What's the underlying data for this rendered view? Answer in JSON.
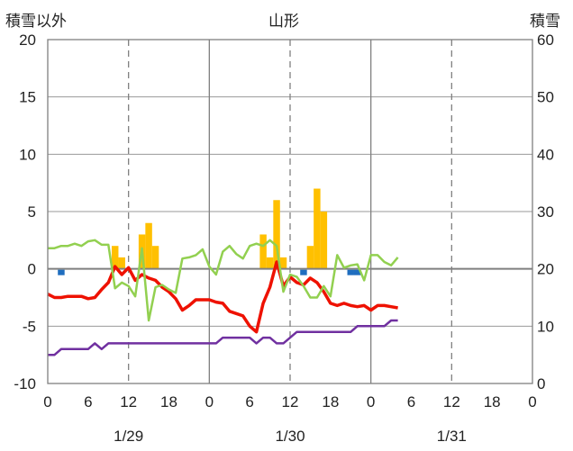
{
  "chart_data": {
    "type": "line",
    "title": "山形",
    "ylabel_left": "積雪以外",
    "ylabel_right": "積雪",
    "ylim_left": [
      -10,
      20
    ],
    "yticks_left": [
      20,
      15,
      10,
      5,
      0,
      -5,
      -10
    ],
    "ylim_right": [
      0,
      60
    ],
    "yticks_right": [
      60,
      50,
      40,
      30,
      20,
      10,
      0
    ],
    "x_hours_total": 72,
    "xticks": [
      {
        "h": 0,
        "label": "0"
      },
      {
        "h": 6,
        "label": "6"
      },
      {
        "h": 12,
        "label": "12"
      },
      {
        "h": 18,
        "label": "18"
      },
      {
        "h": 24,
        "label": "0"
      },
      {
        "h": 30,
        "label": "6"
      },
      {
        "h": 36,
        "label": "12"
      },
      {
        "h": 42,
        "label": "18"
      },
      {
        "h": 48,
        "label": "0"
      },
      {
        "h": 54,
        "label": "6"
      },
      {
        "h": 60,
        "label": "12"
      },
      {
        "h": 66,
        "label": "18"
      },
      {
        "h": 72,
        "label": "0"
      }
    ],
    "dates": [
      {
        "h": 12,
        "label": "1/29"
      },
      {
        "h": 36,
        "label": "1/30"
      },
      {
        "h": 60,
        "label": "1/31"
      }
    ],
    "precip_bars": [
      {
        "h": 10,
        "v": 2
      },
      {
        "h": 11,
        "v": 1
      },
      {
        "h": 14,
        "v": 3
      },
      {
        "h": 15,
        "v": 4
      },
      {
        "h": 16,
        "v": 2
      },
      {
        "h": 32,
        "v": 3
      },
      {
        "h": 33,
        "v": 1
      },
      {
        "h": 34,
        "v": 6
      },
      {
        "h": 35,
        "v": 1
      },
      {
        "h": 39,
        "v": 2
      },
      {
        "h": 40,
        "v": 7
      },
      {
        "h": 41,
        "v": 5
      }
    ],
    "blue_marks": [
      {
        "h": 2,
        "v": -0.3
      },
      {
        "h": 38,
        "v": -0.3
      },
      {
        "h": 45,
        "v": -0.3
      },
      {
        "h": 46,
        "v": -0.3
      }
    ],
    "series": [
      {
        "color": "#ee1100",
        "axis": "left",
        "points": [
          [
            0,
            -2.2
          ],
          [
            1,
            -2.5
          ],
          [
            2,
            -2.5
          ],
          [
            3,
            -2.4
          ],
          [
            4,
            -2.4
          ],
          [
            5,
            -2.4
          ],
          [
            6,
            -2.6
          ],
          [
            7,
            -2.5
          ],
          [
            8,
            -1.8
          ],
          [
            9,
            -1.2
          ],
          [
            10,
            0.2
          ],
          [
            11,
            -0.5
          ],
          [
            12,
            0.1
          ],
          [
            13,
            -1.0
          ],
          [
            14,
            -0.5
          ],
          [
            15,
            -0.8
          ],
          [
            16,
            -1.0
          ],
          [
            17,
            -1.6
          ],
          [
            18,
            -2.0
          ],
          [
            19,
            -2.6
          ],
          [
            20,
            -3.6
          ],
          [
            21,
            -3.2
          ],
          [
            22,
            -2.7
          ],
          [
            23,
            -2.7
          ],
          [
            24,
            -2.7
          ],
          [
            25,
            -2.9
          ],
          [
            26,
            -3.0
          ],
          [
            27,
            -3.7
          ],
          [
            28,
            -3.9
          ],
          [
            29,
            -4.1
          ],
          [
            30,
            -5.0
          ],
          [
            31,
            -5.5
          ],
          [
            32,
            -3.0
          ],
          [
            33,
            -1.6
          ],
          [
            34,
            0.6
          ],
          [
            35,
            -1.5
          ],
          [
            36,
            -0.7
          ],
          [
            37,
            -1.2
          ],
          [
            38,
            -1.4
          ],
          [
            39,
            -0.8
          ],
          [
            40,
            -1.2
          ],
          [
            41,
            -2.0
          ],
          [
            42,
            -3.0
          ],
          [
            43,
            -3.2
          ],
          [
            44,
            -3.0
          ],
          [
            45,
            -3.2
          ],
          [
            46,
            -3.3
          ],
          [
            47,
            -3.2
          ],
          [
            48,
            -3.6
          ],
          [
            49,
            -3.2
          ],
          [
            50,
            -3.2
          ],
          [
            51,
            -3.3
          ],
          [
            52,
            -3.4
          ]
        ]
      },
      {
        "color": "#92d050",
        "axis": "left",
        "points": [
          [
            0,
            1.8
          ],
          [
            1,
            1.8
          ],
          [
            2,
            2.0
          ],
          [
            3,
            2.0
          ],
          [
            4,
            2.2
          ],
          [
            5,
            2.0
          ],
          [
            6,
            2.4
          ],
          [
            7,
            2.5
          ],
          [
            8,
            2.1
          ],
          [
            9,
            2.1
          ],
          [
            10,
            -1.7
          ],
          [
            11,
            -1.2
          ],
          [
            12,
            -1.5
          ],
          [
            13,
            -2.4
          ],
          [
            14,
            1.8
          ],
          [
            15,
            -4.5
          ],
          [
            16,
            -1.6
          ],
          [
            17,
            -1.4
          ],
          [
            18,
            -1.8
          ],
          [
            19,
            -2.1
          ],
          [
            20,
            0.9
          ],
          [
            21,
            1.0
          ],
          [
            22,
            1.2
          ],
          [
            23,
            1.7
          ],
          [
            24,
            0.2
          ],
          [
            25,
            -0.5
          ],
          [
            26,
            1.5
          ],
          [
            27,
            2.0
          ],
          [
            28,
            1.3
          ],
          [
            29,
            0.9
          ],
          [
            30,
            2.0
          ],
          [
            31,
            2.2
          ],
          [
            32,
            2.0
          ],
          [
            33,
            2.5
          ],
          [
            34,
            2.0
          ],
          [
            35,
            -2.0
          ],
          [
            36,
            -0.5
          ],
          [
            37,
            -0.7
          ],
          [
            38,
            -1.5
          ],
          [
            39,
            -2.5
          ],
          [
            40,
            -2.5
          ],
          [
            41,
            -1.5
          ],
          [
            42,
            -2.4
          ],
          [
            43,
            1.2
          ],
          [
            44,
            0.1
          ],
          [
            45,
            0.3
          ],
          [
            46,
            0.4
          ],
          [
            47,
            -1.0
          ],
          [
            48,
            1.2
          ],
          [
            49,
            1.2
          ],
          [
            50,
            0.6
          ],
          [
            51,
            0.3
          ],
          [
            52,
            1.0
          ]
        ]
      },
      {
        "color": "#7030a0",
        "axis": "right",
        "points": [
          [
            0,
            5
          ],
          [
            1,
            5
          ],
          [
            2,
            6
          ],
          [
            3,
            6
          ],
          [
            4,
            6
          ],
          [
            5,
            6
          ],
          [
            6,
            6
          ],
          [
            7,
            7
          ],
          [
            8,
            6
          ],
          [
            9,
            7
          ],
          [
            10,
            7
          ],
          [
            11,
            7
          ],
          [
            12,
            7
          ],
          [
            13,
            7
          ],
          [
            14,
            7
          ],
          [
            15,
            7
          ],
          [
            16,
            7
          ],
          [
            17,
            7
          ],
          [
            18,
            7
          ],
          [
            19,
            7
          ],
          [
            20,
            7
          ],
          [
            21,
            7
          ],
          [
            22,
            7
          ],
          [
            23,
            7
          ],
          [
            24,
            7
          ],
          [
            25,
            7
          ],
          [
            26,
            8
          ],
          [
            27,
            8
          ],
          [
            28,
            8
          ],
          [
            29,
            8
          ],
          [
            30,
            8
          ],
          [
            31,
            7
          ],
          [
            32,
            8
          ],
          [
            33,
            8
          ],
          [
            34,
            7
          ],
          [
            35,
            7
          ],
          [
            36,
            8
          ],
          [
            37,
            9
          ],
          [
            38,
            9
          ],
          [
            39,
            9
          ],
          [
            40,
            9
          ],
          [
            41,
            9
          ],
          [
            42,
            9
          ],
          [
            43,
            9
          ],
          [
            44,
            9
          ],
          [
            45,
            9
          ],
          [
            46,
            10
          ],
          [
            47,
            10
          ],
          [
            48,
            10
          ],
          [
            49,
            10
          ],
          [
            50,
            10
          ],
          [
            51,
            11
          ],
          [
            52,
            11
          ]
        ]
      }
    ],
    "bar_color": "#ffc000",
    "blue_color": "#1f6ebf"
  }
}
